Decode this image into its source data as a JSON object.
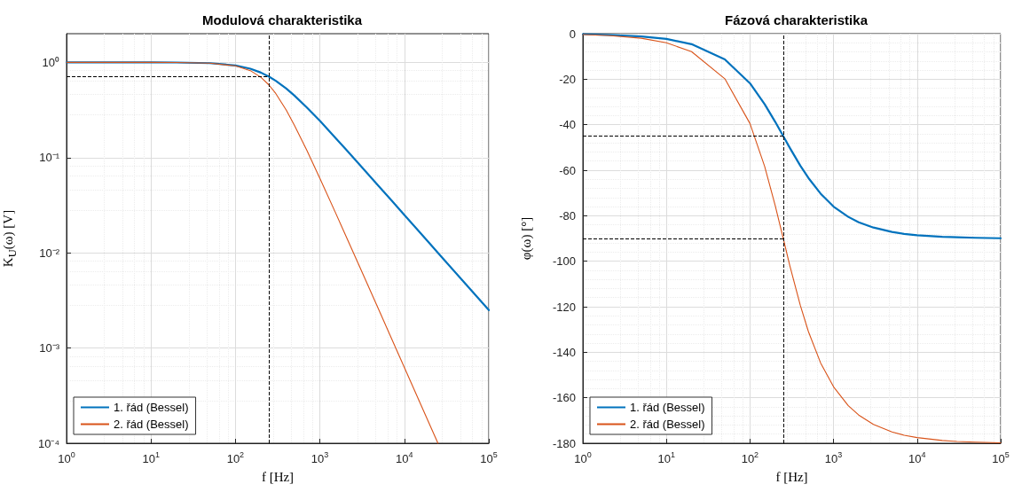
{
  "chart_data": [
    {
      "type": "line",
      "title": "Modulová charakteristika",
      "xlabel": "f [Hz]",
      "ylabel": "K$_{U}$(ω) [V]",
      "log": "xy",
      "grid": true,
      "legend": "bottom left",
      "marker": "none",
      "line_style": "solid",
      "xlim": [
        1,
        100000
      ],
      "ylim": [
        0.0001,
        2
      ],
      "xticks": [
        {
          "value": 1,
          "label": "10$^{0}$"
        },
        {
          "value": 10,
          "label": "10$^{1}$"
        },
        {
          "value": 100,
          "label": "10$^{2}$"
        },
        {
          "value": 1000,
          "label": "10$^{3}$"
        },
        {
          "value": 10000,
          "label": "10$^{4}$"
        },
        {
          "value": 100000,
          "label": "10$^{5}$"
        }
      ],
      "yticks": [
        {
          "value": 0.0001,
          "label": "10⁻⁴"
        },
        {
          "value": 0.001,
          "label": "10⁻³"
        },
        {
          "value": 0.01,
          "label": "10⁻²"
        },
        {
          "value": 0.1,
          "label": "10⁻¹"
        },
        {
          "value": 1,
          "label": "10⁰"
        }
      ],
      "x": [
        1,
        2,
        5,
        10,
        20,
        50,
        100,
        150,
        200,
        250,
        300,
        400,
        500,
        700,
        1000,
        1500,
        2000,
        3000,
        5000,
        7000,
        10000,
        20000,
        25000,
        30000,
        50000,
        100000
      ],
      "series": [
        {
          "name": "1. řád (Bessel)",
          "color": "#0072bd",
          "values": [
            1,
            1,
            0.9998,
            0.999,
            0.997,
            0.981,
            0.928,
            0.857,
            0.781,
            0.707,
            0.64,
            0.53,
            0.447,
            0.336,
            0.243,
            0.164,
            0.124,
            0.083,
            0.0499,
            0.0357,
            0.025,
            0.0125,
            0.01,
            0.00833,
            0.005,
            0.0025
          ]
        },
        {
          "name": "2. řád (Bessel)",
          "color": "#d95319",
          "values": [
            1,
            1,
            1,
            0.9992,
            0.9968,
            0.98,
            0.918,
            0.819,
            0.698,
            0.577,
            0.471,
            0.3145,
            0.218,
            0.1193,
            0.0605,
            0.0274,
            0.0155,
            0.00692,
            0.0025,
            0.001275,
            0.000624,
            0.000156,
            0.0001,
            null,
            null,
            null
          ]
        }
      ],
      "ref_lines": [
        {
          "axis": "x",
          "value": 250,
          "color": "#000000",
          "line_style": "dashed"
        },
        {
          "axis": "y",
          "value": 0.707,
          "color": "#000000",
          "line_style": "dashed"
        }
      ]
    },
    {
      "type": "line",
      "title": "Fázová charakteristika",
      "xlabel": "f [Hz]",
      "ylabel": "φ(ω) [°]",
      "log": "x",
      "grid": true,
      "legend": "bottom left",
      "marker": "none",
      "line_style": "solid",
      "xlim": [
        1,
        100000
      ],
      "ylim": [
        -180,
        0
      ],
      "xticks": [
        {
          "value": 1,
          "label": "10$^{0}$"
        },
        {
          "value": 10,
          "label": "10$^{1}$"
        },
        {
          "value": 100,
          "label": "10$^{2}$"
        },
        {
          "value": 1000,
          "label": "10$^{3}$"
        },
        {
          "value": 10000,
          "label": "10$^{4}$"
        },
        {
          "value": 100000,
          "label": "10$^{5}$"
        }
      ],
      "yticks": [
        -180,
        -160,
        -140,
        -120,
        -100,
        -80,
        -60,
        -40,
        -20,
        0
      ],
      "x": [
        1,
        2,
        5,
        10,
        20,
        50,
        100,
        150,
        200,
        250,
        300,
        400,
        500,
        700,
        1000,
        1500,
        2000,
        3000,
        5000,
        7000,
        10000,
        20000,
        25000,
        30000,
        50000,
        100000
      ],
      "series": [
        {
          "name": "1. řád (Bessel)",
          "color": "#0072bd",
          "values": [
            -0.2,
            -0.5,
            -1.2,
            -2.3,
            -4.6,
            -11.3,
            -21.8,
            -31,
            -38.7,
            -45,
            -50.2,
            -58,
            -63.4,
            -70.3,
            -76,
            -80.5,
            -82.9,
            -85.2,
            -87.1,
            -88,
            -88.6,
            -89.3,
            -89.4,
            -89.5,
            -89.7,
            -89.9
          ]
        },
        {
          "name": "2. řád (Bessel)",
          "color": "#d95319",
          "values": [
            -0.4,
            -0.8,
            -2,
            -4,
            -7.9,
            -19.8,
            -39.5,
            -58.4,
            -75.4,
            -90,
            -102,
            -119.4,
            -130.9,
            -144.7,
            -155.2,
            -163.5,
            -167.6,
            -171.7,
            -175,
            -176.5,
            -177.5,
            -178.8,
            -179,
            -179.2,
            -179.5,
            -179.8
          ]
        }
      ],
      "ref_lines": [
        {
          "axis": "x",
          "value": 250,
          "color": "#000000",
          "line_style": "dashed"
        },
        {
          "axis": "y",
          "value": -45,
          "color": "#000000",
          "line_style": "dashed"
        },
        {
          "axis": "y",
          "value": -90,
          "color": "#000000",
          "line_style": "dashed"
        }
      ]
    }
  ]
}
